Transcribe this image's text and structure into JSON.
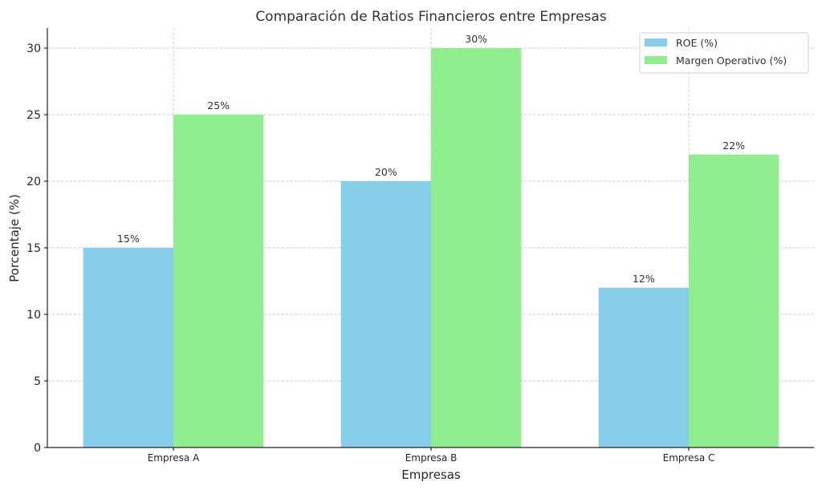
{
  "chart_data": {
    "type": "bar",
    "title": "Comparación de Ratios Financieros entre Empresas",
    "xlabel": "Empresas",
    "ylabel": "Porcentaje (%)",
    "categories": [
      "Empresa A",
      "Empresa B",
      "Empresa C"
    ],
    "series": [
      {
        "name": "ROE (%)",
        "values": [
          15,
          20,
          12
        ],
        "color": "#87CEEB",
        "labels": [
          "15%",
          "20%",
          "12%"
        ]
      },
      {
        "name": "Margen Operativo (%)",
        "values": [
          25,
          30,
          22
        ],
        "color": "#90EE90",
        "labels": [
          "25%",
          "30%",
          "22%"
        ]
      }
    ],
    "ylim": [
      0,
      31.5
    ],
    "yticks": [
      0,
      5,
      10,
      15,
      20,
      25,
      30
    ],
    "grid": true,
    "legend_position": "upper right",
    "bar_width": 0.35
  }
}
